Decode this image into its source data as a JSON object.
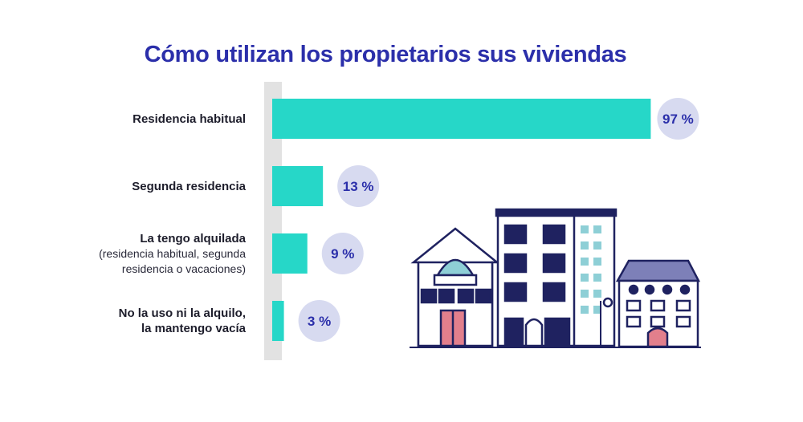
{
  "chart_data": {
    "type": "bar",
    "orientation": "horizontal",
    "title": "Cómo utilizan los propietarios sus viviendas",
    "xlim": [
      0,
      100
    ],
    "grid": false,
    "categories": [
      {
        "label": "Residencia habitual",
        "sublabel": ""
      },
      {
        "label": "Segunda residencia",
        "sublabel": ""
      },
      {
        "label": "La tengo alquilada",
        "sublabel": "(residencia habitual, segunda residencia o vacaciones)"
      },
      {
        "label": "No la uso ni la alquilo, la mantengo vacía",
        "sublabel": ""
      }
    ],
    "values": [
      97,
      13,
      9,
      3
    ],
    "value_labels": [
      "97 %",
      "13 %",
      "9 %",
      "3 %"
    ]
  },
  "colors": {
    "title": "#2b2faa",
    "bar": "#26d7c8",
    "badge_bg": "#d7daf0",
    "badge_text": "#2b2faa",
    "axis_band": "#e2e2e2",
    "illustration_stroke": "#1f2260",
    "illustration_door": "#e27f8c",
    "illustration_window": "#8ecfd6"
  },
  "illustration": "houses-illustration"
}
